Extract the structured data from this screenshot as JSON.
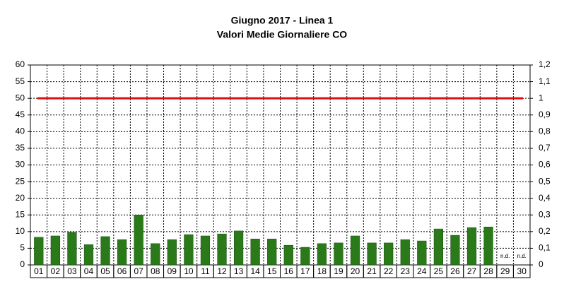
{
  "chart_data": {
    "type": "bar",
    "title": [
      "Giugno 2017 - Linea 1",
      "Valori Medie Giornaliere CO"
    ],
    "categories": [
      "01",
      "02",
      "03",
      "04",
      "05",
      "06",
      "07",
      "08",
      "09",
      "10",
      "11",
      "12",
      "13",
      "14",
      "15",
      "16",
      "17",
      "18",
      "19",
      "20",
      "21",
      "22",
      "23",
      "24",
      "25",
      "26",
      "27",
      "28",
      "29",
      "30"
    ],
    "values": [
      8.3,
      8.7,
      9.8,
      6.1,
      8.5,
      7.6,
      15.0,
      6.4,
      7.6,
      9.1,
      8.7,
      9.3,
      10.2,
      7.8,
      7.8,
      5.9,
      5.3,
      6.4,
      6.6,
      8.7,
      6.6,
      6.6,
      7.6,
      7.2,
      10.8,
      8.9,
      11.2,
      11.4,
      null,
      null
    ],
    "value_labels": [
      null,
      null,
      null,
      null,
      null,
      null,
      null,
      null,
      null,
      null,
      null,
      null,
      null,
      null,
      null,
      null,
      null,
      null,
      null,
      null,
      null,
      null,
      null,
      null,
      null,
      null,
      null,
      null,
      "n.d.",
      "n.d."
    ],
    "color": "#2a7a1a",
    "hline": 50,
    "hline_color": "#e01010",
    "ylim": [
      0,
      60
    ],
    "yticks": [
      0,
      5,
      10,
      15,
      20,
      25,
      30,
      35,
      40,
      45,
      50,
      55,
      60
    ],
    "y2lim": [
      0,
      1.2
    ],
    "y2ticks": [
      0,
      {
        "value": 0.1,
        "label": "0,1"
      },
      {
        "value": 0.2,
        "label": "0,2"
      },
      {
        "value": 0.3,
        "label": "0,3"
      },
      {
        "value": 0.4,
        "label": "0,4"
      },
      {
        "value": 0.5,
        "label": "0,5"
      },
      {
        "value": 0.6,
        "label": "0,6"
      },
      {
        "value": 0.7,
        "label": "0,7"
      },
      {
        "value": 0.8,
        "label": "0,8"
      },
      {
        "value": 0.9,
        "label": "0,9"
      },
      1,
      {
        "value": 1.1,
        "label": "1,1"
      },
      {
        "value": 1.2,
        "label": "1,2"
      }
    ],
    "grid": true
  }
}
